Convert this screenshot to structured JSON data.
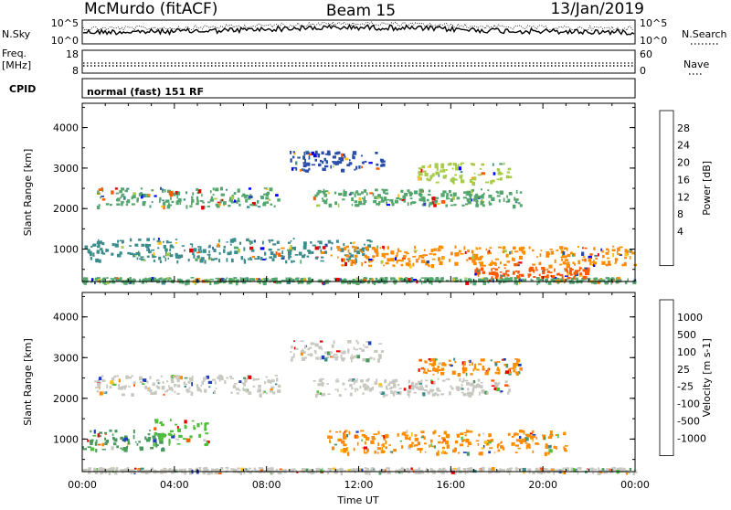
{
  "header": {
    "station": "McMurdo (fitACF)",
    "beam": "Beam 15",
    "date": "13/Jan/2019"
  },
  "top_panels": {
    "nsky_label": "N.Sky",
    "nsearch_label": "N.Search",
    "nsky_ticks": [
      "10^5",
      "10^0"
    ],
    "nsearch_ticks": [
      "10^5",
      "10^0"
    ],
    "freq_label_1": "Freq.",
    "freq_label_2": "[MHz]",
    "freq_ticks": [
      "18",
      "8"
    ],
    "nave_label": "Nave",
    "nave_ticks": [
      "60",
      "0"
    ],
    "cpid_label": "CPID",
    "cpid_text": "normal (fast) 151 RF"
  },
  "chart_data": [
    {
      "type": "heatmap",
      "title": "",
      "ylabel": "Slant Range [km]",
      "xlabel": "",
      "x_ticks": [
        "00:00",
        "04:00",
        "08:00",
        "12:00",
        "16:00",
        "20:00",
        "00:00"
      ],
      "y_ticks": [
        "4000",
        "3000",
        "2000",
        "1000"
      ],
      "ylim": [
        200,
        4600
      ],
      "colorbar": {
        "label": "Power [dB]",
        "ticks": [
          "28",
          "24",
          "20",
          "16",
          "12",
          "8",
          "4"
        ],
        "colors": [
          "#0000ff",
          "#2a4da8",
          "#3d8c8c",
          "#53a66e",
          "#a8cc4a",
          "#ffc21a",
          "#ff8c00",
          "#ff5a00",
          "#e80000"
        ]
      },
      "features": [
        {
          "hour_start": 0.0,
          "hour_end": 24.0,
          "range_center": 250,
          "range_width": 80,
          "color": "#53a66e"
        },
        {
          "hour_start": 0.0,
          "hour_end": 12.5,
          "range_center": 1000,
          "range_width": 350,
          "color": "#3d8c8c"
        },
        {
          "hour_start": 11.0,
          "hour_end": 24.0,
          "range_center": 850,
          "range_width": 300,
          "color": "#ff8c00"
        },
        {
          "hour_start": 0.5,
          "hour_end": 8.5,
          "range_center": 2300,
          "range_width": 300,
          "color": "#53a66e"
        },
        {
          "hour_start": 10.0,
          "hour_end": 19.0,
          "range_center": 2300,
          "range_width": 250,
          "color": "#53a66e"
        },
        {
          "hour_start": 9.0,
          "hour_end": 13.0,
          "range_center": 3200,
          "range_width": 300,
          "color": "#2a4da8"
        },
        {
          "hour_start": 14.5,
          "hour_end": 18.5,
          "range_center": 2900,
          "range_width": 300,
          "color": "#a8cc4a"
        },
        {
          "hour_start": 17.0,
          "hour_end": 22.0,
          "range_center": 450,
          "range_width": 150,
          "color": "#ff5a00"
        }
      ]
    },
    {
      "type": "heatmap",
      "title": "",
      "ylabel": "Slant Range [km]",
      "xlabel": "Time UT",
      "x_ticks": [
        "00:00",
        "04:00",
        "08:00",
        "12:00",
        "16:00",
        "20:00",
        "00:00"
      ],
      "y_ticks": [
        "4000",
        "3000",
        "2000",
        "1000"
      ],
      "ylim": [
        200,
        4600
      ],
      "colorbar": {
        "label": "Velocity [m s-1]",
        "ticks": [
          "1000",
          "500",
          "100",
          "25",
          "-25",
          "-100",
          "-500",
          "-1000"
        ],
        "colors": [
          "#1f3fb8",
          "#3d8c8c",
          "#4a9a5e",
          "#4fbf3a",
          "#c8c8c0",
          "#ffc21a",
          "#ff8c00",
          "#ff5a00",
          "#e80000"
        ]
      },
      "features": [
        {
          "hour_start": 0.0,
          "hour_end": 24.0,
          "range_center": 250,
          "range_width": 80,
          "color": "#c8c8c0"
        },
        {
          "hour_start": 0.0,
          "hour_end": 3.5,
          "range_center": 1000,
          "range_width": 300,
          "color": "#4a9a5e"
        },
        {
          "hour_start": 3.0,
          "hour_end": 5.5,
          "range_center": 1200,
          "range_width": 400,
          "color": "#4fbf3a"
        },
        {
          "hour_start": 10.5,
          "hour_end": 21.0,
          "range_center": 950,
          "range_width": 350,
          "color": "#ff8c00"
        },
        {
          "hour_start": 0.5,
          "hour_end": 8.5,
          "range_center": 2350,
          "range_width": 300,
          "color": "#c8c8c0"
        },
        {
          "hour_start": 10.0,
          "hour_end": 18.5,
          "range_center": 2300,
          "range_width": 250,
          "color": "#c8c8c0"
        },
        {
          "hour_start": 9.0,
          "hour_end": 13.0,
          "range_center": 3200,
          "range_width": 300,
          "color": "#c8c8c0"
        },
        {
          "hour_start": 14.5,
          "hour_end": 19.0,
          "range_center": 2800,
          "range_width": 250,
          "color": "#ff8c00"
        }
      ]
    }
  ]
}
